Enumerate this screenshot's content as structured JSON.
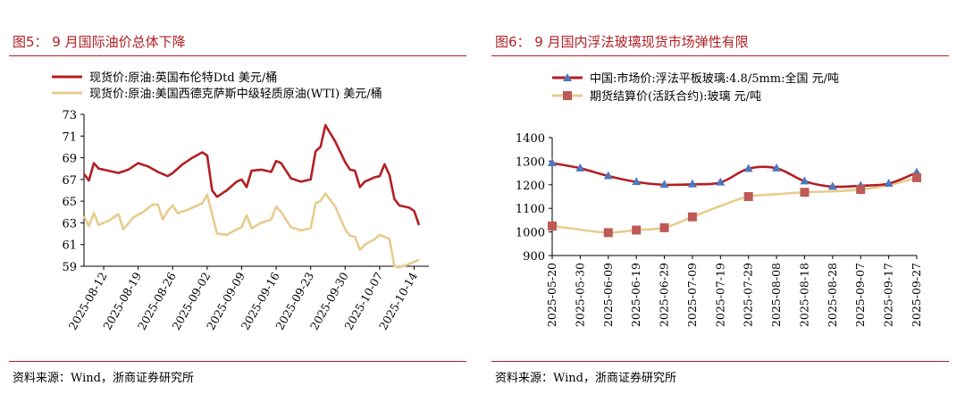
{
  "figures": [
    {
      "title": "图5： 9 月国际油价总体下降",
      "source": "资料来源：Wind，浙商证券研究所"
    },
    {
      "title": "图6： 9 月国内浮法玻璃现货市场弹性有限",
      "source": "资料来源：Wind，浙商证券研究所"
    }
  ],
  "chart_data": [
    {
      "type": "line",
      "title": "",
      "xlabel": "",
      "ylabel": "",
      "ylim": [
        59,
        73
      ],
      "yticks": [
        59,
        61,
        63,
        65,
        67,
        69,
        71,
        73
      ],
      "xlim": [
        "2025-08-08",
        "2025-10-17"
      ],
      "xticks": [
        "2025-08-12",
        "2025-08-19",
        "2025-08-26",
        "2025-09-02",
        "2025-09-09",
        "2025-09-16",
        "2025-09-23",
        "2025-09-30",
        "2025-10-07",
        "2025-10-14"
      ],
      "legend_position": "top-left",
      "grid": false,
      "series": [
        {
          "name": "现货价:原油:英国布伦特Dtd 美元/桶",
          "color": "#b21f24",
          "points": [
            [
              "2025-08-08",
              67.5
            ],
            [
              "2025-08-09",
              66.9
            ],
            [
              "2025-08-10",
              68.5
            ],
            [
              "2025-08-11",
              68.0
            ],
            [
              "2025-08-13",
              67.8
            ],
            [
              "2025-08-15",
              67.6
            ],
            [
              "2025-08-17",
              67.9
            ],
            [
              "2025-08-19",
              68.5
            ],
            [
              "2025-08-21",
              68.2
            ],
            [
              "2025-08-23",
              67.7
            ],
            [
              "2025-08-25",
              67.3
            ],
            [
              "2025-08-26",
              67.6
            ],
            [
              "2025-08-28",
              68.4
            ],
            [
              "2025-08-30",
              69.0
            ],
            [
              "2025-09-01",
              69.5
            ],
            [
              "2025-09-02",
              69.2
            ],
            [
              "2025-09-03",
              66.0
            ],
            [
              "2025-09-04",
              65.4
            ],
            [
              "2025-09-06",
              66.0
            ],
            [
              "2025-09-08",
              66.8
            ],
            [
              "2025-09-09",
              67.0
            ],
            [
              "2025-09-10",
              66.3
            ],
            [
              "2025-09-11",
              67.8
            ],
            [
              "2025-09-13",
              67.9
            ],
            [
              "2025-09-15",
              67.7
            ],
            [
              "2025-09-16",
              68.7
            ],
            [
              "2025-09-17",
              68.5
            ],
            [
              "2025-09-19",
              67.1
            ],
            [
              "2025-09-21",
              66.8
            ],
            [
              "2025-09-23",
              67.0
            ],
            [
              "2025-09-24",
              69.6
            ],
            [
              "2025-09-25",
              70.0
            ],
            [
              "2025-09-26",
              72.0
            ],
            [
              "2025-09-28",
              70.5
            ],
            [
              "2025-09-30",
              68.6
            ],
            [
              "2025-10-01",
              67.9
            ],
            [
              "2025-10-02",
              67.8
            ],
            [
              "2025-10-03",
              66.3
            ],
            [
              "2025-10-04",
              66.8
            ],
            [
              "2025-10-06",
              67.2
            ],
            [
              "2025-10-07",
              67.3
            ],
            [
              "2025-10-08",
              68.4
            ],
            [
              "2025-10-09",
              67.4
            ],
            [
              "2025-10-10",
              65.2
            ],
            [
              "2025-10-11",
              64.6
            ],
            [
              "2025-10-13",
              64.4
            ],
            [
              "2025-10-14",
              64.1
            ],
            [
              "2025-10-15",
              62.8
            ]
          ]
        },
        {
          "name": "现货价:原油:美国西德克萨斯中级轻质原油(WTI) 美元/桶",
          "color": "#e8cc8e",
          "points": [
            [
              "2025-08-08",
              63.6
            ],
            [
              "2025-08-09",
              62.7
            ],
            [
              "2025-08-10",
              63.9
            ],
            [
              "2025-08-11",
              62.8
            ],
            [
              "2025-08-13",
              63.2
            ],
            [
              "2025-08-15",
              63.8
            ],
            [
              "2025-08-16",
              62.4
            ],
            [
              "2025-08-18",
              63.5
            ],
            [
              "2025-08-20",
              64.0
            ],
            [
              "2025-08-22",
              64.7
            ],
            [
              "2025-08-23",
              64.7
            ],
            [
              "2025-08-24",
              63.3
            ],
            [
              "2025-08-25",
              64.1
            ],
            [
              "2025-08-26",
              64.6
            ],
            [
              "2025-08-27",
              63.9
            ],
            [
              "2025-08-29",
              64.2
            ],
            [
              "2025-09-01",
              64.8
            ],
            [
              "2025-09-02",
              65.6
            ],
            [
              "2025-09-03",
              63.8
            ],
            [
              "2025-09-04",
              62.0
            ],
            [
              "2025-09-06",
              61.9
            ],
            [
              "2025-09-08",
              62.4
            ],
            [
              "2025-09-09",
              62.6
            ],
            [
              "2025-09-10",
              63.7
            ],
            [
              "2025-09-11",
              62.5
            ],
            [
              "2025-09-13",
              63.0
            ],
            [
              "2025-09-15",
              63.3
            ],
            [
              "2025-09-16",
              64.5
            ],
            [
              "2025-09-17",
              64.0
            ],
            [
              "2025-09-19",
              62.6
            ],
            [
              "2025-09-21",
              62.3
            ],
            [
              "2025-09-23",
              62.5
            ],
            [
              "2025-09-24",
              64.8
            ],
            [
              "2025-09-25",
              65.0
            ],
            [
              "2025-09-26",
              65.7
            ],
            [
              "2025-09-28",
              64.5
            ],
            [
              "2025-09-30",
              62.4
            ],
            [
              "2025-10-01",
              61.8
            ],
            [
              "2025-10-02",
              61.7
            ],
            [
              "2025-10-03",
              60.5
            ],
            [
              "2025-10-04",
              61.0
            ],
            [
              "2025-10-06",
              61.5
            ],
            [
              "2025-10-07",
              61.9
            ],
            [
              "2025-10-08",
              61.7
            ],
            [
              "2025-10-09",
              61.5
            ],
            [
              "2025-10-10",
              59.0
            ],
            [
              "2025-10-11",
              58.9
            ],
            [
              "2025-10-13",
              59.2
            ],
            [
              "2025-10-15",
              59.6
            ]
          ]
        }
      ]
    },
    {
      "type": "line",
      "title": "",
      "xlabel": "",
      "ylabel": "",
      "ylim": [
        900,
        1400
      ],
      "yticks": [
        900,
        1000,
        1100,
        1200,
        1300,
        1400
      ],
      "categories": [
        "2025-05-20",
        "2025-05-30",
        "2025-06-09",
        "2025-06-19",
        "2025-06-29",
        "2025-07-09",
        "2025-07-19",
        "2025-07-29",
        "2025-08-08",
        "2025-08-18",
        "2025-08-28",
        "2025-09-07",
        "2025-09-17",
        "2025-09-27"
      ],
      "legend_position": "top-left",
      "grid": false,
      "series": [
        {
          "name": "中国:市场价:浮法平板玻璃:4.8/5mm:全国 元/吨",
          "color": "#b21f24",
          "marker": "triangle",
          "marker_color": "#4e77be",
          "values": [
            1292,
            1270,
            1237,
            1212,
            1200,
            1202,
            1210,
            1268,
            1270,
            1215,
            1192,
            1196,
            1205,
            1252
          ]
        },
        {
          "name": "期货结算价(活跃合约):玻璃 元/吨",
          "color": "#e8cc8e",
          "marker": "square",
          "marker_color": "#bd5a55",
          "values": [
            1025,
            null,
            997,
            1008,
            1018,
            1064,
            null,
            1150,
            null,
            1168,
            null,
            1180,
            null,
            1230
          ],
          "line_values": [
            1025,
            1010,
            997,
            1008,
            1018,
            1064,
            1110,
            1150,
            1160,
            1168,
            1172,
            1180,
            1198,
            1230
          ]
        }
      ]
    }
  ]
}
